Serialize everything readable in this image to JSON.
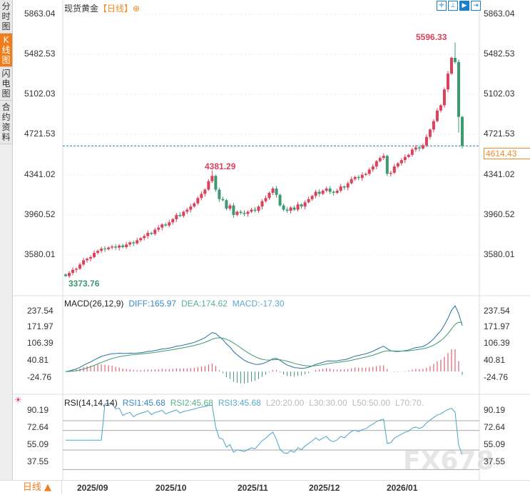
{
  "sidebar": {
    "tabs": [
      {
        "label": "分时图"
      },
      {
        "label": "K线图",
        "active": true
      },
      {
        "label": "闪电图"
      },
      {
        "label": "合约资料"
      }
    ]
  },
  "header": {
    "title": "现货黄金",
    "period": "【日线】",
    "add_icon": "circle-plus-icon"
  },
  "toolbar": {
    "icons": [
      "crosshair-icon",
      "range-select-icon",
      "draw-tool-icon",
      "exit-icon"
    ]
  },
  "price_axis": {
    "ticks": [
      "5863.04",
      "5482.53",
      "5102.03",
      "4721.53",
      "4341.02",
      "3960.52",
      "3580.01"
    ],
    "current": "4614.43"
  },
  "annotations": {
    "high": "5596.33",
    "mid_high": "4381.29",
    "low": "3373.76"
  },
  "macd": {
    "label": "MACD(26,12,9)",
    "diff": "DIFF:165.97",
    "dea": "DEA:174.62",
    "macd": "MACD:-17.30",
    "ticks": [
      "237.54",
      "171.97",
      "106.39",
      "40.81",
      "-24.76"
    ]
  },
  "rsi": {
    "label": "RSI(14,14,14)",
    "rsi1": "RSI1:45.68",
    "rsi2": "RSI2:45.68",
    "rsi3": "RSI3:45.68",
    "l20": "L20:20.00",
    "l30": "L30:30.00",
    "l50": "L50:50.00",
    "l70": "L70:70.",
    "ticks": [
      "90.19",
      "72.64",
      "55.09",
      "37.55"
    ]
  },
  "dates": [
    "2025/09",
    "2025/10",
    "2025/11",
    "2025/12",
    "2026/01"
  ],
  "bottom": {
    "period_label": "日线 ▲"
  },
  "watermark": "FX678",
  "colors": {
    "up": "#d9425a",
    "down": "#3b9a72",
    "accent": "#f07d1a",
    "diff": "#2a6f9a",
    "dea": "#3b9a72"
  },
  "chart_data": {
    "type": "candlestick",
    "ylim": [
      3373.76,
      5863.04
    ],
    "closes": [
      3380,
      3410,
      3440,
      3450,
      3490,
      3530,
      3545,
      3560,
      3600,
      3620,
      3640,
      3635,
      3650,
      3660,
      3650,
      3670,
      3655,
      3680,
      3700,
      3690,
      3720,
      3740,
      3760,
      3790,
      3780,
      3820,
      3840,
      3870,
      3860,
      3890,
      3920,
      3960,
      3950,
      3990,
      4010,
      4040,
      4070,
      4120,
      4160,
      4200,
      4280,
      4330,
      4200,
      4110,
      4100,
      4020,
      4050,
      3960,
      3990,
      3980,
      3970,
      3990,
      4010,
      4000,
      4040,
      4090,
      4120,
      4170,
      4210,
      4150,
      4050,
      4010,
      4000,
      4030,
      4010,
      4060,
      4040,
      4080,
      4110,
      4140,
      4180,
      4160,
      4190,
      4210,
      4180,
      4170,
      4190,
      4230,
      4220,
      4260,
      4300,
      4320,
      4310,
      4340,
      4350,
      4390,
      4420,
      4470,
      4500,
      4520,
      4350,
      4360,
      4420,
      4450,
      4480,
      4510,
      4530,
      4580,
      4600,
      4590,
      4620,
      4700,
      4770,
      4850,
      4950,
      5000,
      5150,
      5300,
      5450,
      5410,
      4890,
      4614.43
    ],
    "high": 5596.33,
    "low": 3373.76
  }
}
